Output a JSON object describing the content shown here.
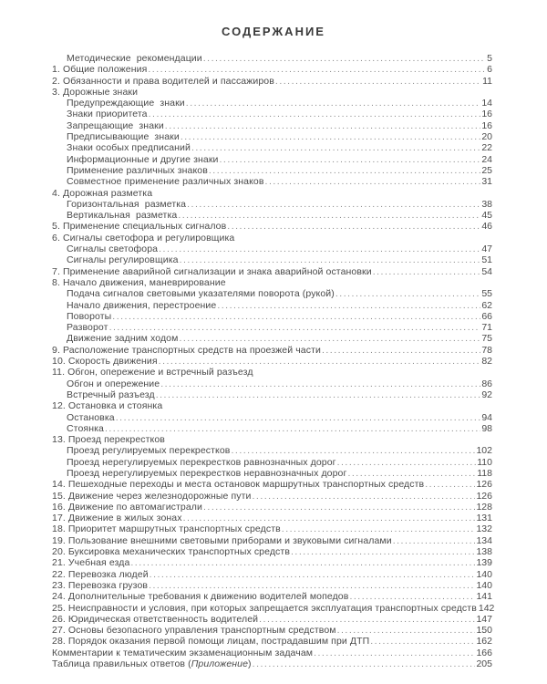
{
  "title": "СОДЕРЖАНИЕ",
  "colors": {
    "text": "#4a4a4a",
    "dots": "#8a8a8a",
    "title": "#3a3a3a",
    "background": "#ffffff"
  },
  "toc": {
    "entries": [
      {
        "label": "Методические  рекомендации",
        "page": "5",
        "indent": 1
      },
      {
        "label": "1. Общие положения",
        "page": "6",
        "indent": 0
      },
      {
        "label": "2. Обязанности и права водителей и пассажиров",
        "page": "11",
        "indent": 0
      },
      {
        "label": "3. Дорожные знаки",
        "page": "",
        "indent": 0
      },
      {
        "label": "Предупреждающие  знаки",
        "page": "14",
        "indent": 1
      },
      {
        "label": "Знаки приоритета",
        "page": "16",
        "indent": 1
      },
      {
        "label": "Запрещающие  знаки",
        "page": "16",
        "indent": 1
      },
      {
        "label": "Предписывающие  знаки",
        "page": "20",
        "indent": 1
      },
      {
        "label": "Знаки особых предписаний",
        "page": "22",
        "indent": 1
      },
      {
        "label": "Информационные и другие знаки",
        "page": "24",
        "indent": 1
      },
      {
        "label": "Применение различных знаков",
        "page": "25",
        "indent": 1
      },
      {
        "label": "Совместное применение различных знаков",
        "page": "31",
        "indent": 1
      },
      {
        "label": "4. Дорожная разметка",
        "page": "",
        "indent": 0
      },
      {
        "label": "Горизонтальная  разметка",
        "page": "38",
        "indent": 1
      },
      {
        "label": "Вертикальная  разметка",
        "page": "45",
        "indent": 1
      },
      {
        "label": "5. Применение специальных сигналов",
        "page": "46",
        "indent": 0
      },
      {
        "label": "6. Сигналы светофора и регулировщика",
        "page": "",
        "indent": 0
      },
      {
        "label": "Сигналы светофора",
        "page": "47",
        "indent": 1
      },
      {
        "label": "Сигналы регулировщика",
        "page": "51",
        "indent": 1
      },
      {
        "label": "7. Применение аварийной сигнализации и знака аварийной остановки",
        "page": "54",
        "indent": 0
      },
      {
        "label": "8. Начало движения, маневрирование",
        "page": "",
        "indent": 0
      },
      {
        "label": "Подача сигналов световыми указателями поворота (рукой)",
        "page": "55",
        "indent": 1
      },
      {
        "label": "Начало движения, перестроение",
        "page": "62",
        "indent": 1
      },
      {
        "label": "Повороты",
        "page": "66",
        "indent": 1
      },
      {
        "label": "Разворот",
        "page": "71",
        "indent": 1
      },
      {
        "label": "Движение задним ходом",
        "page": "75",
        "indent": 1
      },
      {
        "label": "9. Расположение транспортных средств на проезжей части",
        "page": "78",
        "indent": 0
      },
      {
        "label": "10. Скорость движения",
        "page": "82",
        "indent": 0
      },
      {
        "label": "11. Обгон, опережение и встречный разъезд",
        "page": "",
        "indent": 0
      },
      {
        "label": "Обгон и опережение",
        "page": "86",
        "indent": 1
      },
      {
        "label": "Встречный разъезд",
        "page": "92",
        "indent": 1
      },
      {
        "label": "12. Остановка и стоянка",
        "page": "",
        "indent": 0
      },
      {
        "label": "Остановка",
        "page": "94",
        "indent": 1
      },
      {
        "label": "Стоянка",
        "page": "98",
        "indent": 1
      },
      {
        "label": "13. Проезд перекрестков",
        "page": "",
        "indent": 0
      },
      {
        "label": "Проезд регулируемых перекрестков",
        "page": "102",
        "indent": 1
      },
      {
        "label": "Проезд нерегулируемых перекрестков равнозначных дорог",
        "page": "110",
        "indent": 1
      },
      {
        "label": "Проезд нерегулируемых перекрестков неравнозначных дорог",
        "page": "118",
        "indent": 1
      },
      {
        "label": "14. Пешеходные переходы и места остановок маршрутных транспортных средств",
        "page": "126",
        "indent": 0
      },
      {
        "label": "15. Движение через железнодорожные пути",
        "page": "126",
        "indent": 0
      },
      {
        "label": "16. Движение по автомагистрали",
        "page": "128",
        "indent": 0
      },
      {
        "label": "17. Движение в жилых зонах",
        "page": "131",
        "indent": 0
      },
      {
        "label": "18. Приоритет маршрутных транспортных средств",
        "page": "132",
        "indent": 0
      },
      {
        "label": "19. Пользование внешними световыми приборами и звуковыми сигналами",
        "page": "134",
        "indent": 0
      },
      {
        "label": "20. Буксировка механических транспортных средств",
        "page": "138",
        "indent": 0
      },
      {
        "label": "21. Учебная езда",
        "page": "139",
        "indent": 0
      },
      {
        "label": "22. Перевозка людей",
        "page": "140",
        "indent": 0
      },
      {
        "label": "23. Перевозка грузов",
        "page": "140",
        "indent": 0
      },
      {
        "label": "24. Дополнительные требования к движению водителей мопедов",
        "page": "141",
        "indent": 0
      },
      {
        "label": "25. Неисправности и условия, при которых запрещается эксплуатация транспортных средств",
        "page": "142",
        "indent": 0
      },
      {
        "label": "26. Юридическая ответственность водителей",
        "page": "147",
        "indent": 0
      },
      {
        "label": "27. Основы безопасного управления транспортным средством",
        "page": "150",
        "indent": 0
      },
      {
        "label": "28. Порядок оказания первой помощи лицам, пострадавшим при ДТП",
        "page": "162",
        "indent": 0
      },
      {
        "label": "Комментарии к тематическим экзаменационным задачам",
        "page": "166",
        "indent": 0
      },
      {
        "label": "Таблица правильных ответов (",
        "label_italic": "Приложение",
        "label_suffix": ")",
        "page": "205",
        "indent": 0
      }
    ]
  }
}
